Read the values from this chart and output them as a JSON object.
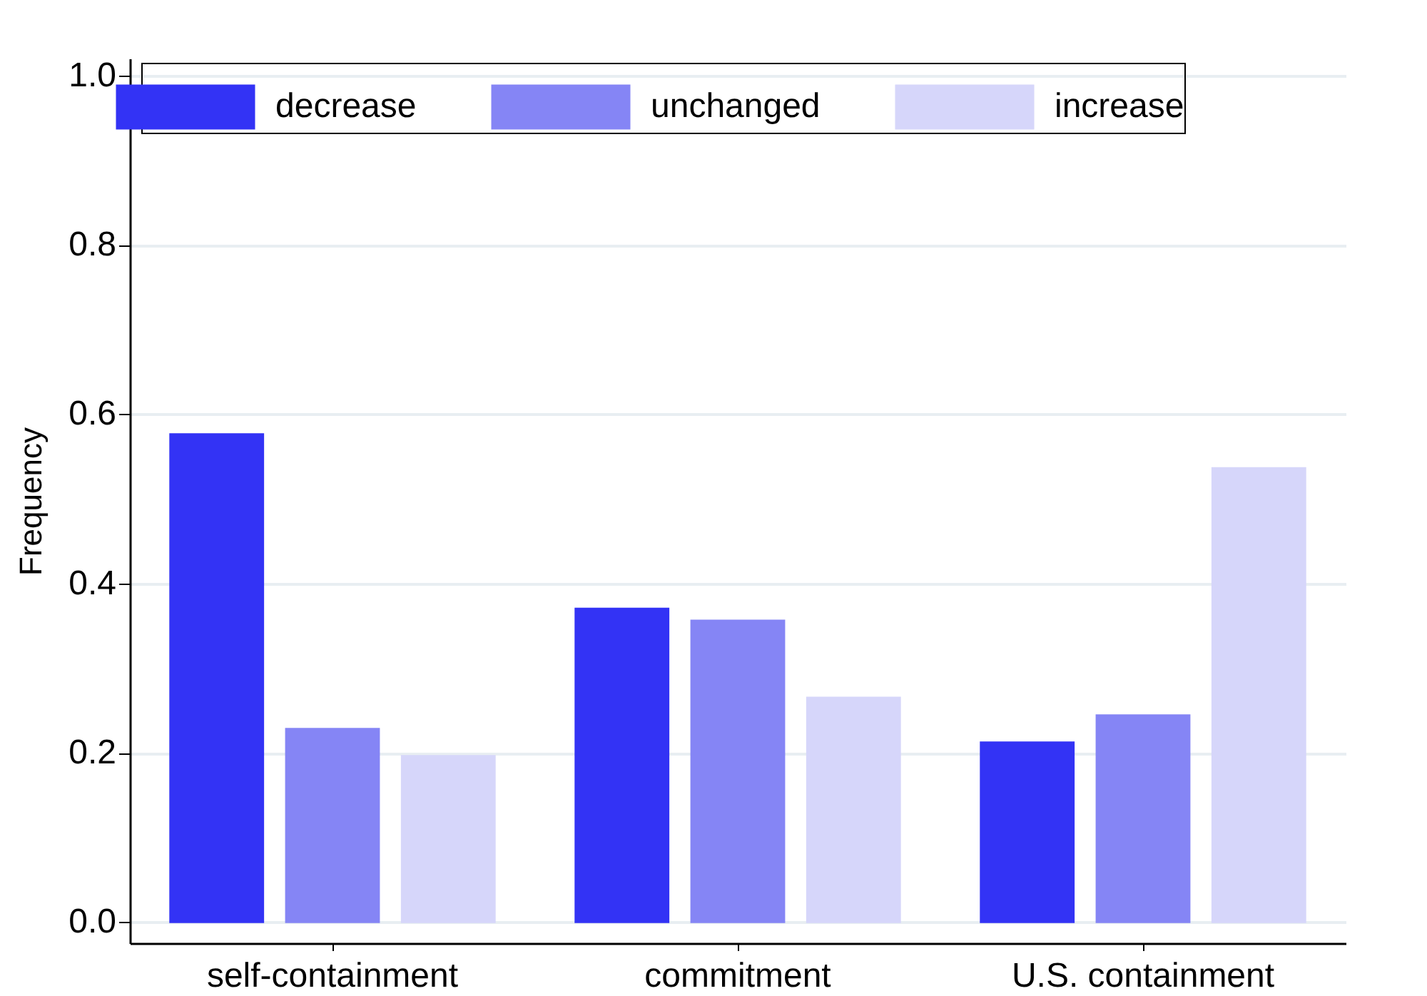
{
  "chart_data": {
    "type": "bar",
    "ylabel": "Frequency",
    "categories": [
      "self-containment",
      "commitment",
      "U.S. containment"
    ],
    "series": [
      {
        "name": "decrease",
        "color": "#3333f5",
        "values": [
          0.576,
          0.37,
          0.212
        ]
      },
      {
        "name": "unchanged",
        "color": "#8585f5",
        "values": [
          0.228,
          0.356,
          0.244
        ]
      },
      {
        "name": "increase",
        "color": "#d6d6fa",
        "values": [
          0.196,
          0.265,
          0.536
        ]
      }
    ],
    "ylim": [
      -0.025,
      1.02
    ],
    "yticks": [
      {
        "value": 0,
        "label": "0.0"
      },
      0.2,
      0.4,
      0.6,
      0.8,
      {
        "value": 1,
        "label": "1.0"
      }
    ],
    "grid": "y",
    "legend": "top"
  }
}
